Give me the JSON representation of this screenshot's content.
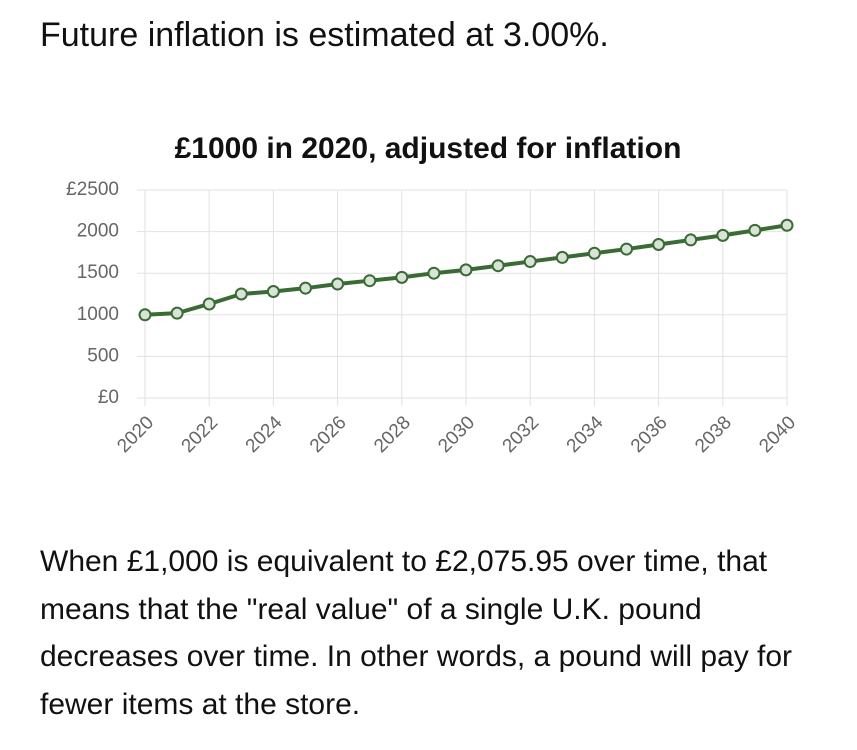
{
  "intro": "Future inflation is estimated at 3.00%.",
  "chart_data": {
    "type": "line",
    "title": "£1000 in 2020, adjusted for inflation",
    "x": [
      2020,
      2021,
      2022,
      2023,
      2024,
      2025,
      2026,
      2027,
      2028,
      2029,
      2030,
      2031,
      2032,
      2033,
      2034,
      2035,
      2036,
      2037,
      2038,
      2039,
      2040
    ],
    "values": [
      1000,
      1020,
      1130,
      1250,
      1280,
      1320,
      1370,
      1410,
      1450,
      1500,
      1540,
      1590,
      1640,
      1690,
      1740,
      1790,
      1845,
      1900,
      1955,
      2015,
      2075.95
    ],
    "color": "#3a6b35",
    "xlim": [
      2020,
      2040
    ],
    "xticks": [
      2020,
      2022,
      2024,
      2026,
      2028,
      2030,
      2032,
      2034,
      2036,
      2038,
      2040
    ],
    "ylim": [
      0,
      2500
    ],
    "yticks": [
      {
        "value": 0,
        "label": "£0"
      },
      500,
      1000,
      1500,
      2000,
      {
        "value": 2500,
        "label": "£2500"
      }
    ],
    "grid": true
  },
  "paragraph": "When £1,000 is equivalent to £2,075.95 over time, that means that the \"real value\" of a single U.K. pound decreases over time. In other words, a pound will pay for fewer items at the store."
}
